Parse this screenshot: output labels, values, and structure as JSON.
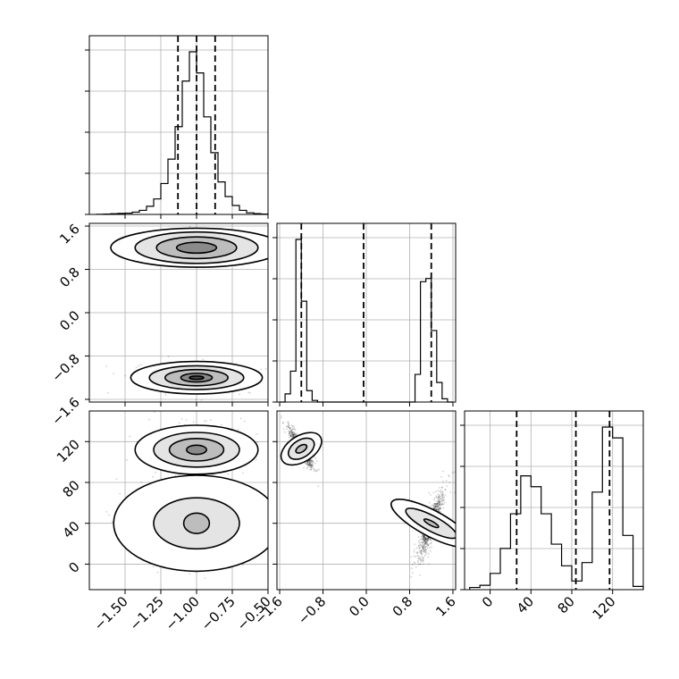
{
  "chart_data": {
    "type": "corner",
    "grid": true,
    "params": [
      {
        "range": [
          -1.75,
          -0.5
        ],
        "ticks": [
          -1.5,
          -1.25,
          -1.0,
          -0.75,
          -0.5
        ],
        "tick_labels": [
          "−1.50",
          "−1.25",
          "−1.00",
          "−0.75",
          "−0.50"
        ]
      },
      {
        "range": [
          -1.65,
          1.65
        ],
        "ticks": [
          -1.6,
          -0.8,
          0.0,
          0.8,
          1.6
        ],
        "tick_labels": [
          "−1.6",
          "−0.8",
          "0.0",
          "0.8",
          "1.6"
        ]
      },
      {
        "range": [
          -25,
          150
        ],
        "ticks": [
          0,
          40,
          80,
          120
        ],
        "tick_labels": [
          "0",
          "40",
          "80",
          "120"
        ]
      }
    ],
    "histograms": [
      {
        "param": 0,
        "bin_edges": [
          -1.7,
          -1.65,
          -1.6,
          -1.55,
          -1.5,
          -1.45,
          -1.4,
          -1.35,
          -1.3,
          -1.25,
          -1.2,
          -1.15,
          -1.1,
          -1.05,
          -1.0,
          -0.95,
          -0.9,
          -0.85,
          -0.8,
          -0.75,
          -0.7,
          -0.65,
          -0.6,
          -0.55,
          -0.5
        ],
        "counts": [
          1,
          2,
          4,
          6,
          8,
          14,
          25,
          50,
          95,
          190,
          340,
          540,
          820,
          1000,
          870,
          600,
          380,
          200,
          110,
          55,
          25,
          10,
          5,
          2
        ],
        "quantiles": [
          -1.13,
          -1.0,
          -0.87
        ]
      },
      {
        "param": 1,
        "bin_edges": [
          -1.6,
          -1.5,
          -1.4,
          -1.3,
          -1.2,
          -1.1,
          -1.0,
          -0.9,
          -0.8,
          -0.7,
          -0.6,
          -0.5,
          -0.4,
          -0.3,
          -0.2,
          -0.1,
          0.0,
          0.1,
          0.2,
          0.3,
          0.4,
          0.5,
          0.6,
          0.7,
          0.8,
          0.9,
          1.0,
          1.1,
          1.2,
          1.3,
          1.4,
          1.5,
          1.6
        ],
        "counts": [
          0,
          50,
          190,
          1000,
          620,
          70,
          10,
          0,
          0,
          0,
          0,
          0,
          0,
          0,
          0,
          0,
          0,
          0,
          0,
          0,
          0,
          0,
          0,
          0,
          0,
          170,
          740,
          760,
          440,
          120,
          20,
          0
        ],
        "quantiles": [
          -1.2,
          -0.05,
          1.2
        ]
      },
      {
        "param": 2,
        "bin_edges": [
          -20,
          -10,
          0,
          10,
          20,
          30,
          40,
          50,
          60,
          70,
          80,
          90,
          100,
          110,
          120,
          130,
          140,
          150
        ],
        "counts": [
          2,
          4,
          15,
          38,
          70,
          105,
          95,
          70,
          42,
          22,
          8,
          25,
          90,
          150,
          140,
          50,
          3
        ],
        "quantiles": [
          26,
          84,
          117
        ]
      }
    ],
    "pairs": [
      {
        "x_param": 0,
        "y_param": 1,
        "modes": [
          {
            "center": [
              -1.0,
              1.2
            ],
            "sigma": [
              0.13,
              0.1
            ],
            "levels": [
              [
                0.14,
                0.1
              ],
              [
                0.28,
                0.2
              ],
              [
                0.43,
                0.29
              ],
              [
                0.6,
                0.36
              ]
            ]
          },
          {
            "center": [
              -1.0,
              -1.2
            ],
            "sigma": [
              0.13,
              0.1
            ],
            "levels": [
              [
                0.05,
                0.03
              ],
              [
                0.11,
                0.08
              ],
              [
                0.22,
                0.15
              ],
              [
                0.33,
                0.22
              ],
              [
                0.46,
                0.3
              ]
            ]
          }
        ]
      },
      {
        "x_param": 0,
        "y_param": 2,
        "modes": [
          {
            "center": [
              -1.0,
              112
            ],
            "sigma": [
              0.11,
              9.5
            ],
            "levels": [
              [
                0.07,
                4.5
              ],
              [
                0.19,
                11
              ],
              [
                0.3,
                17
              ],
              [
                0.43,
                24
              ]
            ]
          },
          {
            "center": [
              -1.0,
              40
            ],
            "sigma": [
              0.17,
              15
            ],
            "levels": [
              [
                0.09,
                10
              ],
              [
                0.3,
                25
              ],
              [
                0.58,
                47
              ]
            ]
          }
        ]
      },
      {
        "x_param": 1,
        "y_param": 2,
        "modes": [
          {
            "center": [
              -1.2,
              113
            ],
            "sigma": [
              0.1,
              8.5
            ],
            "rho": -0.9,
            "levels": [
              [
                0.06,
                6
              ],
              [
                0.16,
                14
              ],
              [
                0.24,
                22
              ]
            ]
          },
          {
            "center": [
              1.2,
              40
            ],
            "sigma": [
              0.1,
              14
            ],
            "rho": 0.85,
            "levels": [
              [
                0.04,
                8
              ],
              [
                0.14,
                28
              ],
              [
                0.24,
                44
              ]
            ]
          }
        ]
      }
    ]
  }
}
